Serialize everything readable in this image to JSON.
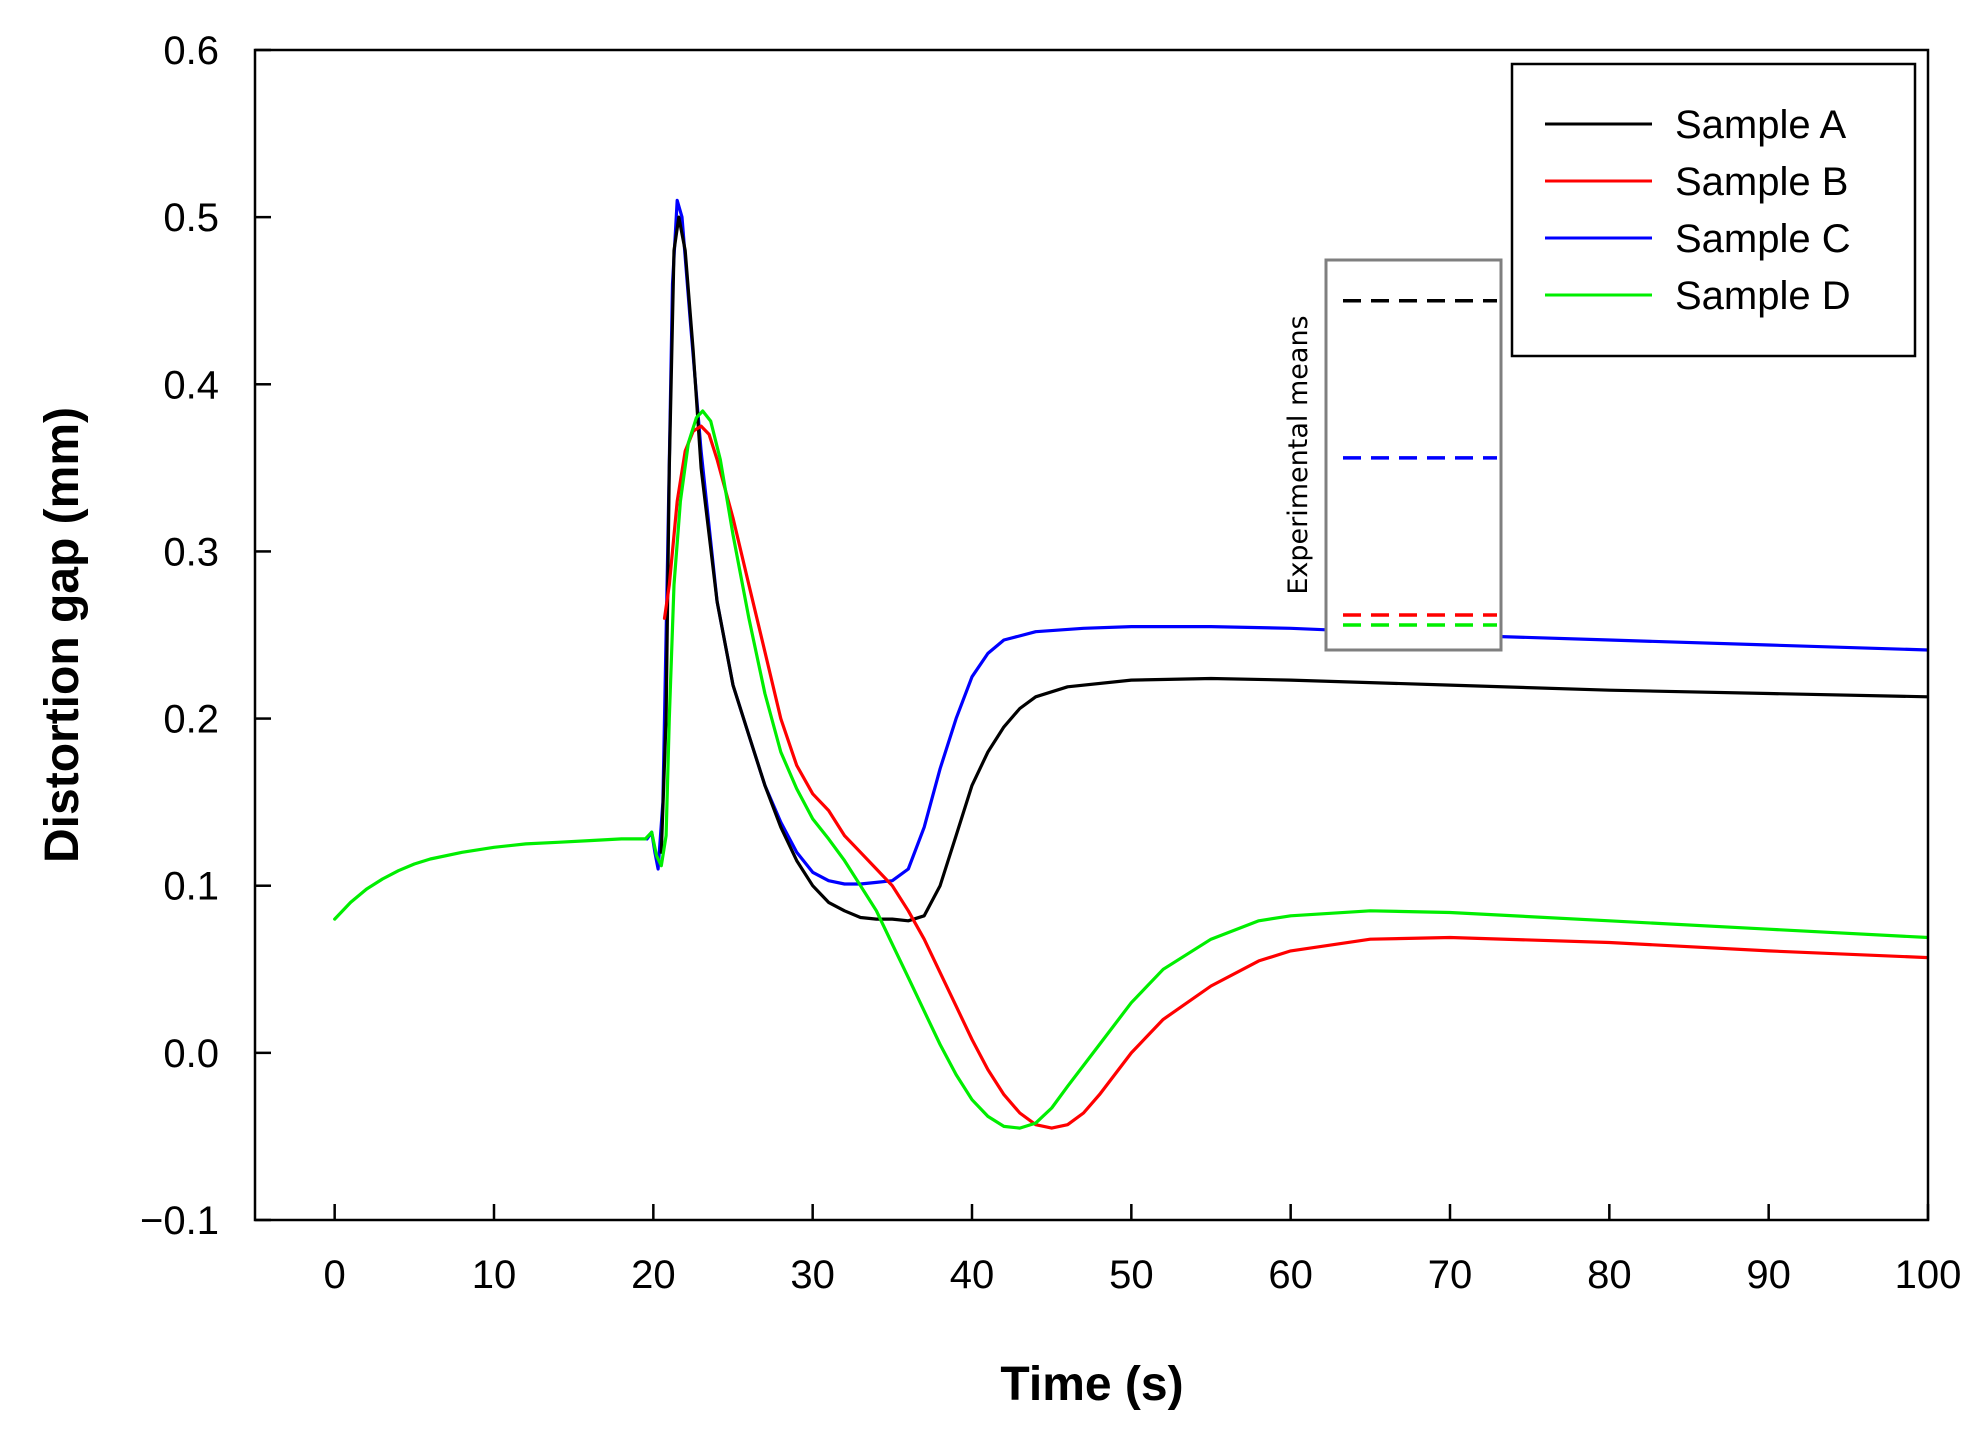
{
  "chart_data": {
    "type": "line",
    "title": "",
    "xlabel": "Time (s)",
    "ylabel": "Distortion gap (mm)",
    "xlim": [
      -5,
      100
    ],
    "ylim": [
      -0.1,
      0.6
    ],
    "x_ticks": [
      0,
      10,
      20,
      30,
      40,
      50,
      60,
      70,
      80,
      90,
      100
    ],
    "x_tick_labels": [
      "0",
      "10",
      "20",
      "30",
      "40",
      "50",
      "60",
      "70",
      "80",
      "90",
      "100"
    ],
    "y_ticks": [
      -0.1,
      0.0,
      0.1,
      0.2,
      0.3,
      0.4,
      0.5,
      0.6
    ],
    "y_tick_labels": [
      "−0.1",
      "0.0",
      "0.1",
      "0.2",
      "0.3",
      "0.4",
      "0.5",
      "0.6"
    ],
    "grid": false,
    "legend_position": "top-right",
    "series": [
      {
        "name": "Sample A",
        "color": "#000000",
        "points": [
          [
            20.5,
            0.12
          ],
          [
            20.8,
            0.2
          ],
          [
            21,
            0.35
          ],
          [
            21.3,
            0.48
          ],
          [
            21.6,
            0.5
          ],
          [
            22,
            0.48
          ],
          [
            22.5,
            0.42
          ],
          [
            23,
            0.35
          ],
          [
            24,
            0.27
          ],
          [
            25,
            0.22
          ],
          [
            26,
            0.19
          ],
          [
            27,
            0.16
          ],
          [
            28,
            0.135
          ],
          [
            29,
            0.115
          ],
          [
            30,
            0.1
          ],
          [
            31,
            0.09
          ],
          [
            32,
            0.085
          ],
          [
            33,
            0.081
          ],
          [
            34,
            0.08
          ],
          [
            35,
            0.08
          ],
          [
            36,
            0.079
          ],
          [
            37,
            0.082
          ],
          [
            38,
            0.1
          ],
          [
            39,
            0.13
          ],
          [
            40,
            0.16
          ],
          [
            41,
            0.18
          ],
          [
            42,
            0.195
          ],
          [
            43,
            0.206
          ],
          [
            44,
            0.213
          ],
          [
            46,
            0.219
          ],
          [
            50,
            0.223
          ],
          [
            55,
            0.224
          ],
          [
            60,
            0.223
          ],
          [
            70,
            0.22
          ],
          [
            80,
            0.217
          ],
          [
            90,
            0.215
          ],
          [
            100,
            0.213
          ]
        ]
      },
      {
        "name": "Sample B",
        "color": "#ff0000",
        "points": [
          [
            20.7,
            0.26
          ],
          [
            21,
            0.28
          ],
          [
            21.5,
            0.33
          ],
          [
            22,
            0.36
          ],
          [
            22.5,
            0.372
          ],
          [
            23,
            0.375
          ],
          [
            23.5,
            0.37
          ],
          [
            24,
            0.355
          ],
          [
            25,
            0.32
          ],
          [
            26,
            0.28
          ],
          [
            27,
            0.24
          ],
          [
            28,
            0.2
          ],
          [
            29,
            0.172
          ],
          [
            30,
            0.155
          ],
          [
            31,
            0.145
          ],
          [
            32,
            0.13
          ],
          [
            33,
            0.12
          ],
          [
            34,
            0.11
          ],
          [
            35,
            0.1
          ],
          [
            36,
            0.085
          ],
          [
            37,
            0.068
          ],
          [
            38,
            0.048
          ],
          [
            39,
            0.028
          ],
          [
            40,
            0.008
          ],
          [
            41,
            -0.01
          ],
          [
            42,
            -0.025
          ],
          [
            43,
            -0.036
          ],
          [
            44,
            -0.043
          ],
          [
            45,
            -0.045
          ],
          [
            46,
            -0.043
          ],
          [
            47,
            -0.036
          ],
          [
            48,
            -0.025
          ],
          [
            50,
            0.0
          ],
          [
            52,
            0.02
          ],
          [
            55,
            0.04
          ],
          [
            58,
            0.055
          ],
          [
            60,
            0.061
          ],
          [
            65,
            0.068
          ],
          [
            70,
            0.069
          ],
          [
            80,
            0.066
          ],
          [
            90,
            0.061
          ],
          [
            100,
            0.057
          ]
        ]
      },
      {
        "name": "Sample C",
        "color": "#0000ff",
        "points": [
          [
            19.6,
            0.128
          ],
          [
            19.9,
            0.132
          ],
          [
            20.1,
            0.12
          ],
          [
            20.3,
            0.11
          ],
          [
            20.6,
            0.15
          ],
          [
            20.9,
            0.3
          ],
          [
            21.2,
            0.46
          ],
          [
            21.5,
            0.51
          ],
          [
            21.8,
            0.5
          ],
          [
            22.3,
            0.44
          ],
          [
            23,
            0.36
          ],
          [
            24,
            0.27
          ],
          [
            25,
            0.22
          ],
          [
            26,
            0.19
          ],
          [
            27,
            0.16
          ],
          [
            28,
            0.138
          ],
          [
            29,
            0.12
          ],
          [
            30,
            0.108
          ],
          [
            31,
            0.103
          ],
          [
            32,
            0.101
          ],
          [
            33,
            0.101
          ],
          [
            34,
            0.102
          ],
          [
            35,
            0.103
          ],
          [
            36,
            0.11
          ],
          [
            37,
            0.135
          ],
          [
            38,
            0.17
          ],
          [
            39,
            0.2
          ],
          [
            40,
            0.225
          ],
          [
            41,
            0.239
          ],
          [
            42,
            0.247
          ],
          [
            44,
            0.252
          ],
          [
            47,
            0.254
          ],
          [
            50,
            0.255
          ],
          [
            55,
            0.255
          ],
          [
            60,
            0.254
          ],
          [
            70,
            0.25
          ],
          [
            80,
            0.247
          ],
          [
            90,
            0.244
          ],
          [
            100,
            0.241
          ]
        ]
      },
      {
        "name": "Sample D",
        "color": "#00ee00",
        "points": [
          [
            0,
            0.08
          ],
          [
            1,
            0.09
          ],
          [
            2,
            0.098
          ],
          [
            3,
            0.104
          ],
          [
            4,
            0.109
          ],
          [
            5,
            0.113
          ],
          [
            6,
            0.116
          ],
          [
            8,
            0.12
          ],
          [
            10,
            0.123
          ],
          [
            12,
            0.125
          ],
          [
            14,
            0.126
          ],
          [
            16,
            0.127
          ],
          [
            18,
            0.128
          ],
          [
            19.5,
            0.128
          ],
          [
            19.9,
            0.132
          ],
          [
            20.2,
            0.118
          ],
          [
            20.5,
            0.112
          ],
          [
            20.8,
            0.13
          ],
          [
            21,
            0.2
          ],
          [
            21.3,
            0.28
          ],
          [
            21.7,
            0.33
          ],
          [
            22.2,
            0.365
          ],
          [
            22.7,
            0.38
          ],
          [
            23.1,
            0.384
          ],
          [
            23.6,
            0.378
          ],
          [
            24.2,
            0.355
          ],
          [
            25,
            0.31
          ],
          [
            26,
            0.26
          ],
          [
            27,
            0.215
          ],
          [
            28,
            0.18
          ],
          [
            29,
            0.158
          ],
          [
            30,
            0.14
          ],
          [
            31,
            0.128
          ],
          [
            32,
            0.115
          ],
          [
            33,
            0.1
          ],
          [
            34,
            0.085
          ],
          [
            35,
            0.065
          ],
          [
            36,
            0.045
          ],
          [
            37,
            0.025
          ],
          [
            38,
            0.005
          ],
          [
            39,
            -0.013
          ],
          [
            40,
            -0.028
          ],
          [
            41,
            -0.038
          ],
          [
            42,
            -0.044
          ],
          [
            43,
            -0.045
          ],
          [
            44,
            -0.042
          ],
          [
            45,
            -0.033
          ],
          [
            46,
            -0.02
          ],
          [
            48,
            0.005
          ],
          [
            50,
            0.03
          ],
          [
            52,
            0.05
          ],
          [
            55,
            0.068
          ],
          [
            58,
            0.079
          ],
          [
            60,
            0.082
          ],
          [
            65,
            0.085
          ],
          [
            70,
            0.084
          ],
          [
            80,
            0.079
          ],
          [
            90,
            0.074
          ],
          [
            100,
            0.069
          ]
        ]
      }
    ],
    "inset": {
      "label": "Experimental means",
      "means": [
        {
          "series": "Sample A",
          "value": 0.45,
          "color": "#000000"
        },
        {
          "series": "Sample C",
          "value": 0.356,
          "color": "#0000ff"
        },
        {
          "series": "Sample B",
          "value": 0.262,
          "color": "#ff0000"
        },
        {
          "series": "Sample D",
          "value": 0.256,
          "color": "#00ee00"
        }
      ]
    }
  }
}
